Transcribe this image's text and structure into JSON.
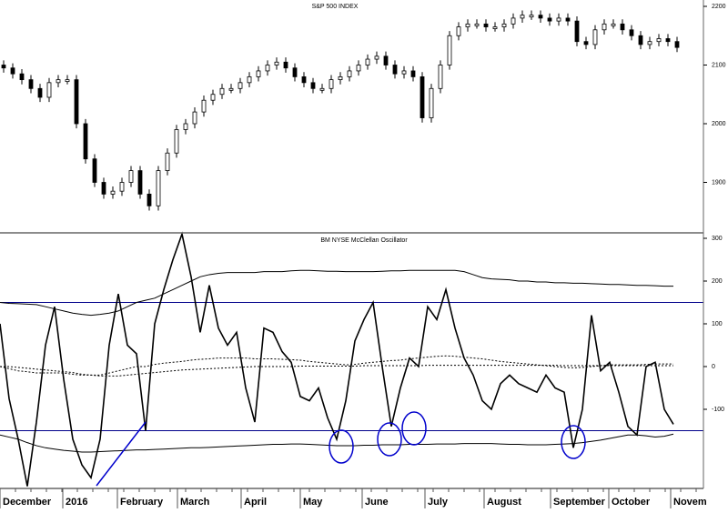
{
  "chart_data": [
    {
      "type": "candlestick",
      "title": "S&P 500 INDEX",
      "ylim": [
        1840,
        2210
      ],
      "yticks": [
        "2200",
        "2100",
        "2000",
        "1900"
      ],
      "closes": [
        2095,
        2085,
        2075,
        2060,
        2045,
        2070,
        2075,
        2075,
        2000,
        1940,
        1900,
        1880,
        1885,
        1900,
        1920,
        1880,
        1860,
        1920,
        1950,
        1990,
        2000,
        2020,
        2040,
        2050,
        2060,
        2060,
        2070,
        2080,
        2090,
        2100,
        2105,
        2095,
        2080,
        2070,
        2060,
        2060,
        2075,
        2080,
        2090,
        2100,
        2110,
        2115,
        2100,
        2085,
        2090,
        2080,
        2010,
        2060,
        2100,
        2150,
        2165,
        2170,
        2170,
        2165,
        2165,
        2170,
        2180,
        2185,
        2185,
        2180,
        2175,
        2180,
        2175,
        2140,
        2135,
        2160,
        2170,
        2170,
        2160,
        2150,
        2135,
        2140,
        2145,
        2140,
        2130
      ],
      "grid": false
    },
    {
      "type": "line",
      "title": "BM NYSE McClellan Oscillator",
      "ylim": [
        -300,
        310
      ],
      "yticks": [
        "300",
        "200",
        "100",
        "0",
        "-100"
      ],
      "reference_lines": [
        150,
        -150
      ],
      "series": [
        {
          "values": [
            100,
            -75,
            -170,
            -280,
            -130,
            50,
            140,
            -30,
            -170,
            -230,
            -260,
            -170,
            50,
            170,
            50,
            30,
            -150,
            100,
            180,
            250,
            310,
            210,
            80,
            190,
            90,
            50,
            80,
            -50,
            -130,
            90,
            80,
            35,
            10,
            -70,
            -80,
            -50,
            -120,
            -170,
            -80,
            60,
            110,
            150,
            0,
            -140,
            -50,
            20,
            0,
            140,
            110,
            180,
            90,
            20,
            -20,
            -80,
            -100,
            -40,
            -20,
            -40,
            -50,
            -60,
            -20,
            -50,
            -60,
            -190,
            -100,
            120,
            -10,
            10,
            -60,
            -140,
            -160,
            0,
            10,
            -100,
            -135
          ]
        },
        {
          "style": "upper-band",
          "values": [
            150,
            148,
            147,
            146,
            145,
            140,
            135,
            130,
            125,
            122,
            120,
            122,
            125,
            130,
            140,
            150,
            155,
            160,
            170,
            180,
            190,
            200,
            210,
            215,
            218,
            220,
            220,
            220,
            220,
            222,
            222,
            222,
            224,
            225,
            225,
            224,
            223,
            223,
            222,
            222,
            222,
            222,
            223,
            224,
            224,
            225,
            225,
            225,
            225,
            225,
            225,
            222,
            215,
            208,
            205,
            204,
            203,
            200,
            200,
            198,
            198,
            196,
            196,
            195,
            195,
            194,
            193,
            192,
            192,
            191,
            190,
            190,
            189,
            188,
            188
          ]
        },
        {
          "style": "lower-band",
          "values": [
            -160,
            -165,
            -170,
            -178,
            -185,
            -190,
            -193,
            -196,
            -198,
            -200,
            -200,
            -199,
            -198,
            -197,
            -196,
            -195,
            -195,
            -194,
            -193,
            -192,
            -191,
            -190,
            -190,
            -189,
            -188,
            -187,
            -186,
            -185,
            -184,
            -183,
            -182,
            -182,
            -181,
            -181,
            -182,
            -183,
            -184,
            -185,
            -185,
            -185,
            -184,
            -184,
            -183,
            -183,
            -183,
            -182,
            -182,
            -182,
            -181,
            -181,
            -181,
            -180,
            -180,
            -180,
            -180,
            -181,
            -182,
            -182,
            -183,
            -183,
            -183,
            -182,
            -181,
            -180,
            -178,
            -175,
            -172,
            -168,
            -164,
            -160,
            -160,
            -162,
            -165,
            -163,
            -158
          ]
        },
        {
          "style": "dashed",
          "values": [
            0,
            -5,
            -10,
            -12,
            -15,
            -15,
            -15,
            -15,
            -18,
            -20,
            -20,
            -20,
            -15,
            -10,
            -5,
            0,
            0,
            5,
            8,
            10,
            12,
            15,
            17,
            18,
            20,
            20,
            20,
            20,
            18,
            18,
            18,
            17,
            16,
            15,
            12,
            10,
            8,
            6,
            4,
            5,
            8,
            10,
            12,
            14,
            15,
            18,
            20,
            22,
            24,
            25,
            24,
            22,
            20,
            18,
            15,
            12,
            10,
            8,
            6,
            4,
            2,
            0,
            -2,
            -3,
            -2,
            0,
            2,
            4,
            4,
            4,
            4,
            5,
            6,
            6,
            6
          ]
        },
        {
          "style": "dashed",
          "values": [
            0,
            0,
            -2,
            -4,
            -6,
            -8,
            -10,
            -12,
            -14,
            -18,
            -20,
            -22,
            -22,
            -22,
            -20,
            -18,
            -16,
            -14,
            -12,
            -10,
            -8,
            -7,
            -6,
            -5,
            -4,
            -3,
            -2,
            -1,
            0,
            0,
            0,
            0,
            0,
            1,
            1,
            1,
            1,
            1,
            1,
            1,
            2,
            2,
            2,
            2,
            2,
            2,
            2,
            3,
            3,
            3,
            3,
            3,
            3,
            3,
            3,
            3,
            3,
            3,
            3,
            3,
            3,
            3,
            2,
            2,
            2,
            2,
            2,
            2,
            2,
            2,
            2,
            2,
            2,
            2,
            2
          ]
        }
      ],
      "grid": false
    }
  ],
  "x_axis": {
    "tick_labels": [
      "December",
      "2016",
      "February",
      "March",
      "April",
      "May",
      "June",
      "July",
      "August",
      "September",
      "October",
      "Novem"
    ]
  },
  "annotations": {
    "color": "#0000cc",
    "circles_at_months": [
      "May",
      "June",
      "June",
      "September"
    ]
  }
}
